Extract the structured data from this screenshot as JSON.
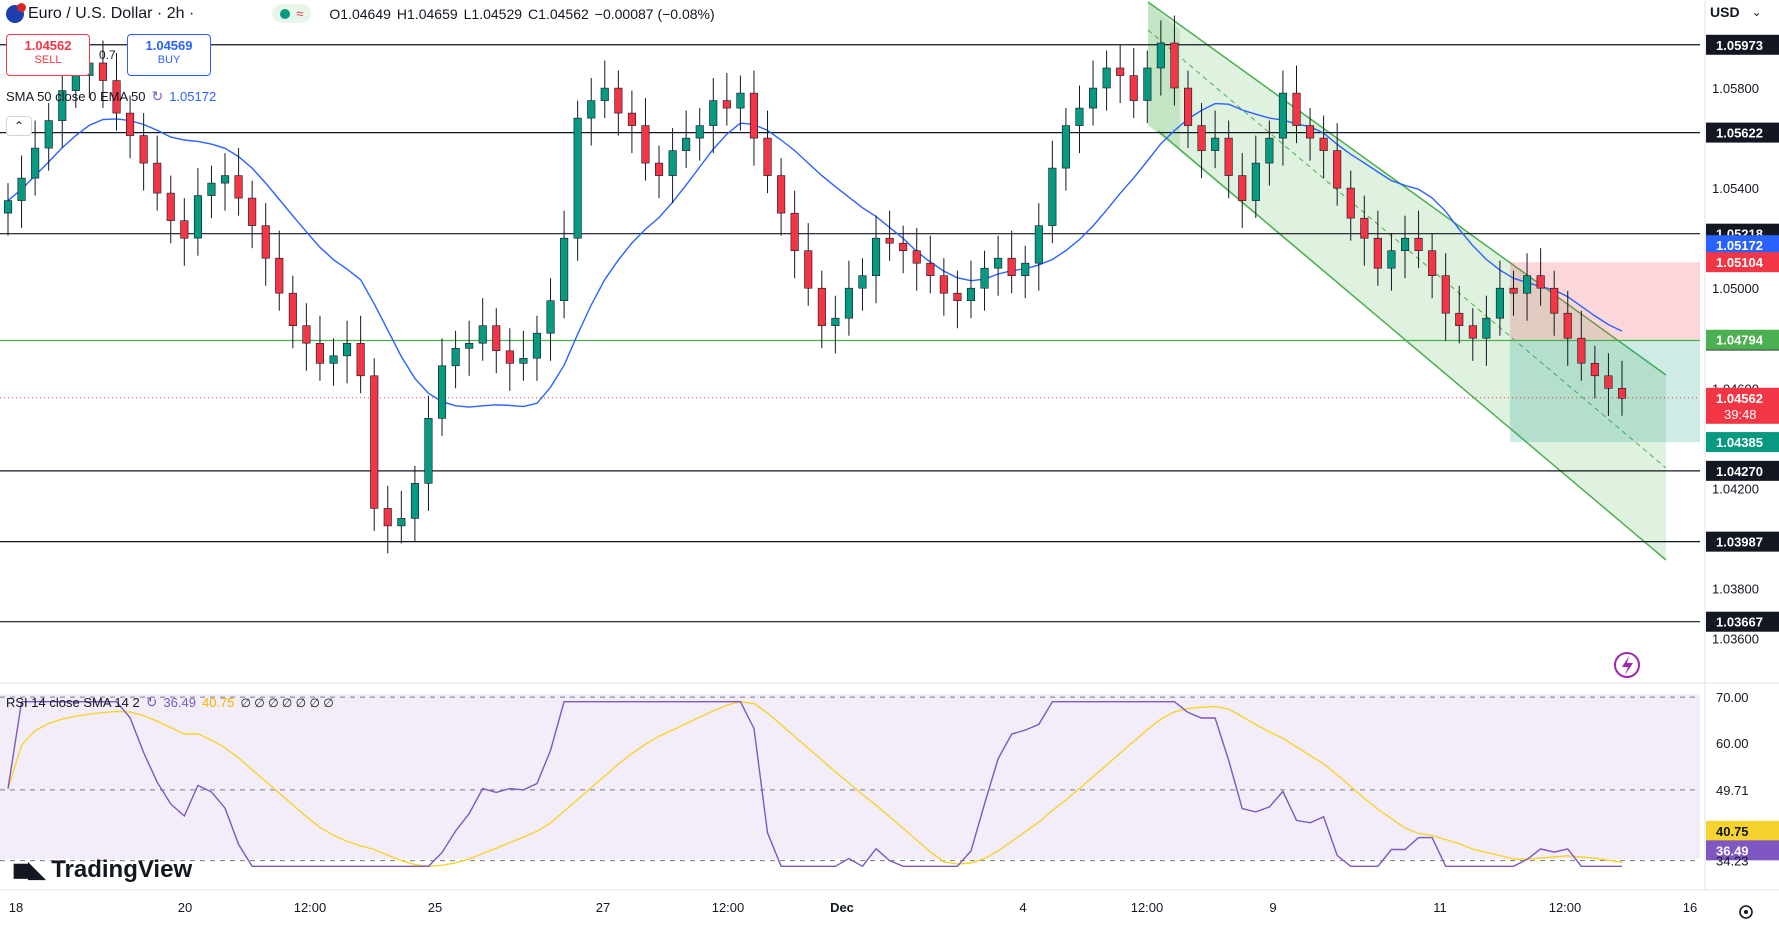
{
  "header": {
    "symbol": "Euro / U.S. Dollar · 2h ·",
    "ohlc": {
      "open": "O1.04649",
      "high": "H1.04659",
      "low": "L1.04529",
      "close": "C1.04562",
      "change": "−0.00087 (−0.08%)"
    },
    "currency": "USD",
    "spread": "0.7",
    "sell": {
      "price": "1.04562",
      "label": "SELL"
    },
    "buy": {
      "price": "1.04569",
      "label": "BUY"
    }
  },
  "indicators": {
    "ma_label": "SMA 50 close 0 EMA 50",
    "ma_value": "1.05172",
    "rsi_label": "RSI 14 close SMA 14 2",
    "rsi_value": "36.49",
    "rsi_sma_value": "40.75",
    "rsi_zeros": "∅ ∅ ∅ ∅ ∅ ∅ ∅"
  },
  "brand": "TradingView",
  "colors": {
    "up": "#089981",
    "down": "#f23645",
    "ma": "#2962ff",
    "rsi": "#7e57c2",
    "rsi_sma": "#f7d32f",
    "channel": "#4caf50",
    "risk": "#f23645",
    "reward": "#089981"
  },
  "chart_data": {
    "type": "candlestick",
    "timeframe": "2h",
    "price_axis": {
      "ticks": [
        "1.05800",
        "1.05400",
        "1.05000",
        "1.04600",
        "1.04200",
        "1.03800",
        "1.03600"
      ],
      "range": [
        1.0345,
        1.0612
      ]
    },
    "time_axis": {
      "ticks": [
        "18",
        "20",
        "12:00",
        "25",
        "27",
        "12:00",
        "Dec",
        "4",
        "12:00",
        "9",
        "11",
        "12:00",
        "16"
      ]
    },
    "horizontal_levels": [
      {
        "value": "1.05973",
        "label": "1.05973",
        "style": "support-resistance"
      },
      {
        "value": "1.05622",
        "label": "1.05622",
        "style": "support-resistance"
      },
      {
        "value": "1.05218",
        "label": "1.05218",
        "style": "support-resistance"
      },
      {
        "value": "1.04791",
        "label": "1.04791",
        "style": "support-resistance"
      },
      {
        "value": "1.04270",
        "label": "1.04270",
        "style": "support-resistance"
      },
      {
        "value": "1.03987",
        "label": "1.03987",
        "style": "support-resistance"
      },
      {
        "value": "1.03667",
        "label": "1.03667",
        "style": "support-resistance"
      }
    ],
    "price_labels": [
      {
        "value": "1.05172",
        "kind": "ma"
      },
      {
        "value": "1.05104",
        "kind": "stop"
      },
      {
        "value": "1.04794",
        "kind": "entry"
      },
      {
        "value": "1.04562",
        "kind": "last",
        "countdown": "39:48"
      },
      {
        "value": "1.04385",
        "kind": "target"
      }
    ],
    "series": [
      {
        "name": "SMA 50 close 0 EMA 50",
        "last": 1.05172
      },
      {
        "name": "RSI 14 close SMA 14 2",
        "last": 36.49,
        "sma": 40.75
      }
    ],
    "candles_close_approx": [
      1.0535,
      1.0544,
      1.0556,
      1.0567,
      1.0579,
      1.0585,
      1.059,
      1.0583,
      1.057,
      1.0561,
      1.055,
      1.0538,
      1.0527,
      1.052,
      1.0537,
      1.0542,
      1.0545,
      1.0536,
      1.0525,
      1.0512,
      1.0498,
      1.0485,
      1.0478,
      1.047,
      1.0473,
      1.0478,
      1.0465,
      1.0412,
      1.0405,
      1.0408,
      1.0422,
      1.0448,
      1.0469,
      1.0476,
      1.0478,
      1.0485,
      1.0475,
      1.047,
      1.0472,
      1.0482,
      1.0495,
      1.052,
      1.0568,
      1.0575,
      1.058,
      1.057,
      1.0565,
      1.055,
      1.0545,
      1.0555,
      1.056,
      1.0565,
      1.0575,
      1.0572,
      1.0578,
      1.056,
      1.0545,
      1.053,
      1.0515,
      1.05,
      1.0485,
      1.0488,
      1.05,
      1.0505,
      1.052,
      1.0518,
      1.0515,
      1.051,
      1.0505,
      1.0498,
      1.0495,
      1.05,
      1.0508,
      1.0512,
      1.0505,
      1.051,
      1.0525,
      1.0548,
      1.0565,
      1.0572,
      1.058,
      1.0588,
      1.0585,
      1.0575,
      1.0588,
      1.0598,
      1.058,
      1.0565,
      1.0555,
      1.056,
      1.0545,
      1.0535,
      1.055,
      1.056,
      1.0578,
      1.0565,
      1.056,
      1.0555,
      1.054,
      1.0528,
      1.052,
      1.0508,
      1.0515,
      1.052,
      1.0515,
      1.0505,
      1.049,
      1.0485,
      1.048,
      1.0488,
      1.05,
      1.0498,
      1.0505,
      1.05,
      1.049,
      1.048,
      1.047,
      1.0465,
      1.046,
      1.0456
    ],
    "rsi": {
      "levels": [
        "70.00",
        "60.00",
        "49.71",
        "40.75",
        "36.49",
        "34.23"
      ],
      "range": [
        30,
        72
      ]
    },
    "channel": {
      "description": "descending parallel channel"
    },
    "position": {
      "entry": "1.04794",
      "stop": "1.05104",
      "target": "1.04385"
    }
  }
}
